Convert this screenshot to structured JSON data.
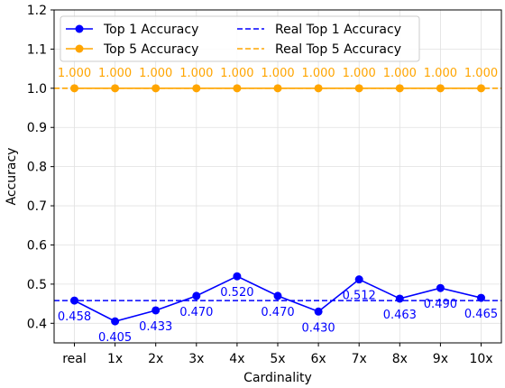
{
  "chart_data": {
    "type": "line",
    "title": "",
    "xlabel": "Cardinality",
    "ylabel": "Accuracy",
    "categories": [
      "real",
      "1x",
      "2x",
      "3x",
      "4x",
      "5x",
      "6x",
      "7x",
      "8x",
      "9x",
      "10x"
    ],
    "ylim": [
      0.35,
      1.2
    ],
    "yticks": [
      "0.4",
      "0.5",
      "0.6",
      "0.7",
      "0.8",
      "0.9",
      "1.0",
      "1.1",
      "1.2"
    ],
    "grid": true,
    "legend_position": "top-left",
    "series": [
      {
        "name": "Top 1 Accuracy",
        "color": "#0000ff",
        "style": "solid-marker",
        "values": [
          0.458,
          0.405,
          0.433,
          0.47,
          0.52,
          0.47,
          0.43,
          0.512,
          0.463,
          0.49,
          0.465
        ],
        "labels": [
          "0.458",
          "0.405",
          "0.433",
          "0.470",
          "0.520",
          "0.470",
          "0.430",
          "0.512",
          "0.463",
          "0.490",
          "0.465"
        ]
      },
      {
        "name": "Top 5 Accuracy",
        "color": "#ffa500",
        "style": "solid-marker",
        "values": [
          1.0,
          1.0,
          1.0,
          1.0,
          1.0,
          1.0,
          1.0,
          1.0,
          1.0,
          1.0,
          1.0
        ],
        "labels": [
          "1.000",
          "1.000",
          "1.000",
          "1.000",
          "1.000",
          "1.000",
          "1.000",
          "1.000",
          "1.000",
          "1.000",
          "1.000"
        ]
      }
    ],
    "reference_lines": [
      {
        "name": "Real Top 1 Accuracy",
        "value": 0.458,
        "color": "#0000ff",
        "style": "dashed"
      },
      {
        "name": "Real Top 5 Accuracy",
        "value": 1.0,
        "color": "#ffa500",
        "style": "dashed"
      }
    ]
  }
}
